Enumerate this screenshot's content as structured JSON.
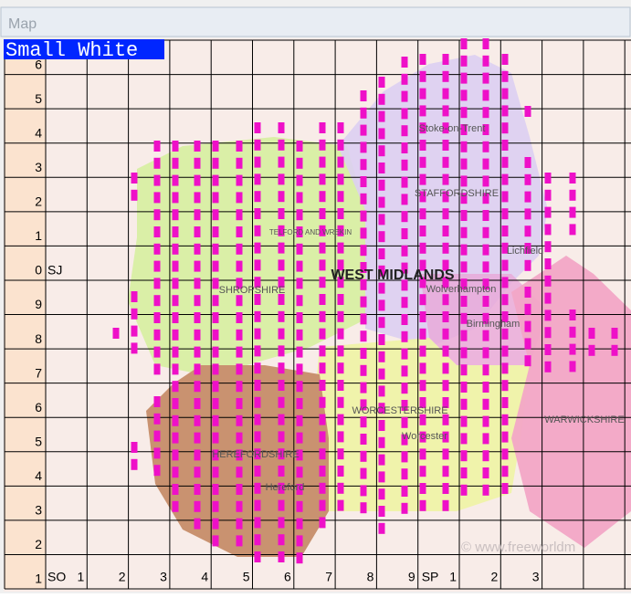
{
  "window": {
    "title": "Map"
  },
  "overlay_label": "Small White",
  "row_labels": [
    "6",
    "5",
    "4",
    "3",
    "2",
    "1",
    "0",
    "9",
    "8",
    "7",
    "6",
    "5",
    "4",
    "3",
    "2",
    "1"
  ],
  "square_labels": {
    "upper": "SJ",
    "lower_left": "SO",
    "lower_right": "SP"
  },
  "column_labels": [
    "1",
    "2",
    "3",
    "4",
    "5",
    "6",
    "7",
    "8",
    "9",
    "1",
    "2",
    "3"
  ],
  "map_labels": {
    "region": "WEST MIDLANDS",
    "shropshire": "SHROPSHIRE",
    "staffordshire": "STAFFORDSHIRE",
    "worcestershire": "WORCESTERSHIRE",
    "herefordshire": "HEREFORDSHIRE",
    "warwickshire": "WARWICKSHIRE",
    "stoke": "Stoke-on-Trent",
    "wolverhampton": "Wolverhampton",
    "birmingham": "Birmingham",
    "hereford": "Hereford",
    "worcester": "Worcester",
    "lichfield": "Lichfield",
    "telford": "TELFORD AND WREKIN",
    "credit": "© www.freeworldm"
  }
}
